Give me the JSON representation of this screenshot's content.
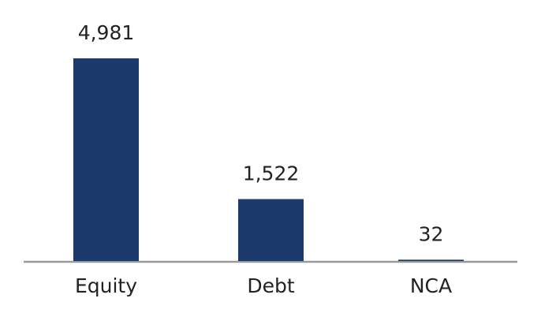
{
  "chart_data": {
    "type": "bar",
    "categories": [
      "Equity",
      "Debt",
      "NCA"
    ],
    "values": [
      4981,
      1522,
      32
    ],
    "value_labels": [
      "4,981",
      "1,522",
      "32"
    ],
    "color": "#1b3a6b"
  }
}
